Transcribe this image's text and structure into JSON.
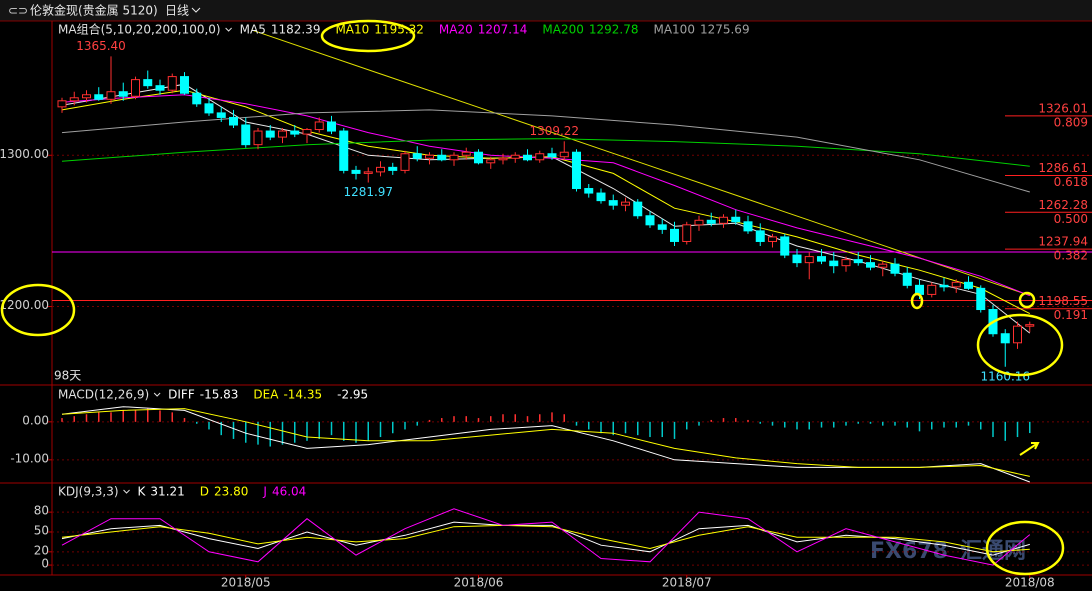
{
  "header": {
    "instrument": "伦敦金现(贵金属 5120)",
    "period": "日线",
    "watermark": [
      "FX678",
      "汇通网"
    ]
  },
  "chart_data": [
    {
      "type": "candlestick",
      "title": "MA组合(5,10,20,200,100,0)",
      "candles": [
        [
          1332,
          1338,
          1328,
          1336
        ],
        [
          1336,
          1342,
          1333,
          1338
        ],
        [
          1338,
          1343,
          1335,
          1340
        ],
        [
          1340,
          1345,
          1336,
          1337
        ],
        [
          1337,
          1365.4,
          1334,
          1342
        ],
        [
          1342,
          1348,
          1336,
          1339
        ],
        [
          1339,
          1352,
          1337,
          1350
        ],
        [
          1350,
          1356,
          1344,
          1346
        ],
        [
          1346,
          1350,
          1340,
          1343
        ],
        [
          1343,
          1354,
          1341,
          1352
        ],
        [
          1352,
          1355,
          1340,
          1341
        ],
        [
          1341,
          1344,
          1332,
          1334
        ],
        [
          1334,
          1338,
          1326,
          1328
        ],
        [
          1328,
          1332,
          1322,
          1325
        ],
        [
          1325,
          1330,
          1318,
          1320
        ],
        [
          1320,
          1325,
          1305,
          1307
        ],
        [
          1307,
          1318,
          1304,
          1316
        ],
        [
          1316,
          1320,
          1310,
          1312
        ],
        [
          1312,
          1318,
          1308,
          1316
        ],
        [
          1316,
          1320,
          1312,
          1314
        ],
        [
          1314,
          1318,
          1308,
          1317
        ],
        [
          1317,
          1325,
          1315,
          1322
        ],
        [
          1322,
          1326,
          1314,
          1316
        ],
        [
          1316,
          1318,
          1288,
          1290
        ],
        [
          1290,
          1293,
          1284,
          1288
        ],
        [
          1288,
          1292,
          1281.97,
          1289
        ],
        [
          1289,
          1296,
          1286,
          1292
        ],
        [
          1292,
          1295,
          1287,
          1290
        ],
        [
          1290,
          1303,
          1288,
          1301
        ],
        [
          1301,
          1306,
          1296,
          1298
        ],
        [
          1298,
          1302,
          1294,
          1300
        ],
        [
          1300,
          1304,
          1296,
          1297
        ],
        [
          1297,
          1302,
          1293,
          1300
        ],
        [
          1300,
          1305,
          1297,
          1302
        ],
        [
          1302,
          1304,
          1294,
          1295
        ],
        [
          1295,
          1299,
          1291,
          1297
        ],
        [
          1297,
          1301,
          1294,
          1298
        ],
        [
          1298,
          1302,
          1295,
          1300
        ],
        [
          1300,
          1304,
          1296,
          1297
        ],
        [
          1297,
          1303,
          1295,
          1301
        ],
        [
          1301,
          1305,
          1297,
          1299
        ],
        [
          1299,
          1309.22,
          1297,
          1302
        ],
        [
          1302,
          1304,
          1276,
          1278
        ],
        [
          1278,
          1281,
          1272,
          1275
        ],
        [
          1275,
          1278,
          1268,
          1270
        ],
        [
          1270,
          1274,
          1264,
          1267
        ],
        [
          1267,
          1272,
          1263,
          1269
        ],
        [
          1269,
          1271,
          1258,
          1260
        ],
        [
          1260,
          1263,
          1252,
          1254
        ],
        [
          1254,
          1258,
          1248,
          1251
        ],
        [
          1251,
          1256,
          1240,
          1243
        ],
        [
          1243,
          1256,
          1241,
          1254
        ],
        [
          1254,
          1260,
          1250,
          1257
        ],
        [
          1257,
          1262,
          1253,
          1255
        ],
        [
          1255,
          1261,
          1252,
          1259
        ],
        [
          1259,
          1264,
          1254,
          1256
        ],
        [
          1256,
          1260,
          1248,
          1250
        ],
        [
          1250,
          1255,
          1240,
          1243
        ],
        [
          1243,
          1248,
          1239,
          1246
        ],
        [
          1246,
          1248,
          1232,
          1234
        ],
        [
          1234,
          1238,
          1226,
          1229
        ],
        [
          1229,
          1236,
          1218,
          1233
        ],
        [
          1233,
          1238,
          1228,
          1230
        ],
        [
          1230,
          1236,
          1222,
          1227
        ],
        [
          1227,
          1233,
          1223,
          1231
        ],
        [
          1231,
          1236,
          1227,
          1229
        ],
        [
          1229,
          1234,
          1224,
          1226
        ],
        [
          1226,
          1230,
          1220,
          1228
        ],
        [
          1228,
          1232,
          1220,
          1222
        ],
        [
          1222,
          1226,
          1212,
          1214
        ],
        [
          1214,
          1218,
          1205,
          1208
        ],
        [
          1208,
          1216,
          1206,
          1214
        ],
        [
          1214,
          1219,
          1210,
          1213
        ],
        [
          1213,
          1218,
          1209,
          1216
        ],
        [
          1216,
          1220,
          1211,
          1212
        ],
        [
          1212,
          1214,
          1196,
          1198
        ],
        [
          1198,
          1201,
          1180,
          1182
        ],
        [
          1182,
          1185,
          1160.16,
          1176
        ],
        [
          1176,
          1190,
          1172,
          1187
        ],
        [
          1187,
          1190,
          1183,
          1188
        ]
      ],
      "up_color": "#ff3030",
      "down_color": "#00ffff",
      "ylim": [
        1148.1,
        1388.1
      ],
      "yticks": [
        {
          "value": 1300,
          "label": "1300.00"
        },
        {
          "value": 1200,
          "label": "1200.00"
        }
      ],
      "grid": true,
      "series": [
        {
          "name": "MA5",
          "label": "1182.39",
          "color": "#e8e8e8",
          "x": [
            0,
            5,
            10,
            15,
            20,
            25,
            30,
            35,
            40,
            45,
            50,
            55,
            60,
            65,
            70,
            75,
            79
          ],
          "values": [
            1333,
            1340,
            1347,
            1322,
            1314,
            1300,
            1297,
            1298,
            1299,
            1278,
            1253,
            1255,
            1240,
            1230,
            1218,
            1208,
            1182.39
          ]
        },
        {
          "name": "MA10",
          "label": "1195.32",
          "color": "#ffff00",
          "x": [
            0,
            5,
            10,
            15,
            20,
            25,
            30,
            35,
            40,
            45,
            50,
            55,
            60,
            65,
            70,
            75,
            79
          ],
          "values": [
            1330,
            1337,
            1343,
            1332,
            1316,
            1306,
            1300,
            1298,
            1299,
            1288,
            1265,
            1256,
            1246,
            1234,
            1224,
            1212,
            1195.32
          ]
        },
        {
          "name": "MA20",
          "label": "1207.14",
          "color": "#ff00ff",
          "x": [
            0,
            5,
            10,
            15,
            20,
            25,
            30,
            35,
            40,
            45,
            50,
            55,
            60,
            65,
            70,
            75,
            79
          ],
          "values": [
            1335,
            1338,
            1340,
            1334,
            1326,
            1315,
            1306,
            1300,
            1298,
            1295,
            1280,
            1264,
            1252,
            1242,
            1232,
            1220,
            1207.14
          ]
        },
        {
          "name": "MA200",
          "label": "1292.78",
          "color": "#00d000",
          "x": [
            0,
            10,
            20,
            30,
            40,
            50,
            60,
            70,
            79
          ],
          "values": [
            1296,
            1302,
            1307,
            1310,
            1311,
            1309,
            1306,
            1301,
            1292.78
          ]
        },
        {
          "name": "MA100",
          "label": "1275.69",
          "color": "#a0a0a0",
          "x": [
            0,
            10,
            20,
            30,
            40,
            50,
            60,
            70,
            79
          ],
          "values": [
            1315,
            1322,
            1328,
            1330,
            1326,
            1320,
            1312,
            1297,
            1275.69
          ]
        }
      ],
      "trendline": {
        "color": "#e0e000",
        "x": [
          15.5,
          79
        ],
        "values": [
          1382.8,
          1207.3
        ]
      },
      "hlines": [
        {
          "value": 1236,
          "color": "#ff00ff"
        },
        {
          "value": 1204,
          "color": "#ff2020"
        }
      ],
      "fib_levels": [
        {
          "value": 1326.01,
          "ratio": "0.809"
        },
        {
          "value": 1286.61,
          "ratio": "0.618"
        },
        {
          "value": 1262.28,
          "ratio": "0.500"
        },
        {
          "value": 1237.94,
          "ratio": "0.382"
        },
        {
          "value": 1198.55,
          "ratio": "0.191"
        }
      ],
      "extreme_labels": [
        {
          "label": "1365.40",
          "index": 4,
          "value": 1365.4,
          "side": "top",
          "color": "#ff4040"
        },
        {
          "label": "1281.97",
          "index": 25,
          "value": 1281.97,
          "side": "bottom",
          "color": "#40e0ff"
        },
        {
          "label": "1309.22",
          "index": 41,
          "value": 1309.22,
          "side": "top",
          "color": "#ff4040"
        },
        {
          "label": "1160.16",
          "index": 77,
          "value": 1160.16,
          "side": "bottom",
          "color": "#40e0ff"
        }
      ],
      "note": "98天"
    },
    {
      "type": "macd",
      "title": "MACD(12,26,9)",
      "histogram": [
        1,
        1.5,
        2,
        2.5,
        2.5,
        3,
        3,
        3.5,
        3,
        2.5,
        1,
        -0.5,
        -2,
        -3.5,
        -4.5,
        -5.5,
        -6,
        -6.5,
        -6,
        -5.5,
        -5,
        -4.5,
        -3.5,
        -5,
        -5.5,
        -5,
        -4,
        -3,
        -2,
        -1,
        0.5,
        1,
        1.5,
        1.5,
        1,
        1.5,
        2,
        2,
        1.5,
        2,
        2.5,
        2,
        -1,
        -2,
        -3,
        -3.5,
        -3,
        -3.5,
        -4,
        -4,
        -4.5,
        -2,
        -1,
        0.5,
        1,
        1,
        0.5,
        -0.5,
        -1,
        -1.5,
        -2,
        -2,
        -1.5,
        -1.5,
        -1,
        -0.5,
        -0.5,
        -1,
        -1,
        -1.5,
        -2.5,
        -2,
        -1.5,
        -1.5,
        -1,
        -2,
        -4,
        -5,
        -4,
        -2.95
      ],
      "histogram_label": "-2.95",
      "up_color": "#ff3030",
      "down_color": "#00c8c8",
      "series": [
        {
          "name": "DIFF",
          "label": "-15.83",
          "color": "#ffffff",
          "x": [
            0,
            5,
            10,
            15,
            20,
            25,
            30,
            35,
            40,
            45,
            50,
            55,
            60,
            65,
            70,
            75,
            79
          ],
          "values": [
            2,
            4,
            3,
            -3,
            -7,
            -6,
            -4,
            -2,
            -1,
            -5,
            -10,
            -11,
            -12,
            -12,
            -12,
            -11,
            -15.83
          ]
        },
        {
          "name": "DEA",
          "label": "-14.35",
          "color": "#ffff00",
          "x": [
            0,
            5,
            10,
            15,
            20,
            25,
            30,
            35,
            40,
            45,
            50,
            55,
            60,
            65,
            70,
            75,
            79
          ],
          "values": [
            2,
            3,
            3.5,
            0,
            -4,
            -5,
            -5,
            -3.5,
            -2,
            -3,
            -7,
            -9.5,
            -11,
            -12,
            -12,
            -11.5,
            -14.35
          ]
        }
      ],
      "ylim": [
        -16.1,
        9.7
      ],
      "yticks": [
        {
          "value": 0,
          "label": "0.00"
        },
        {
          "value": -10,
          "label": "-10.00"
        }
      ],
      "grid": true
    },
    {
      "type": "kdj",
      "title": "KDJ(9,3,3)",
      "series": [
        {
          "name": "K",
          "label": "31.21",
          "color": "#ffffff",
          "x": [
            0,
            4,
            8,
            12,
            16,
            20,
            24,
            28,
            32,
            36,
            40,
            44,
            48,
            52,
            56,
            60,
            64,
            68,
            72,
            76,
            79
          ],
          "values": [
            40,
            55,
            60,
            40,
            25,
            50,
            30,
            45,
            65,
            60,
            60,
            30,
            20,
            55,
            60,
            35,
            45,
            40,
            30,
            15,
            31.21
          ]
        },
        {
          "name": "D",
          "label": "23.80",
          "color": "#ffff00",
          "x": [
            0,
            4,
            8,
            12,
            16,
            20,
            24,
            28,
            32,
            36,
            40,
            44,
            48,
            52,
            56,
            60,
            64,
            68,
            72,
            76,
            79
          ],
          "values": [
            42,
            50,
            58,
            48,
            32,
            42,
            35,
            40,
            58,
            60,
            58,
            40,
            25,
            45,
            58,
            42,
            42,
            42,
            35,
            20,
            23.8
          ]
        },
        {
          "name": "J",
          "label": "46.04",
          "color": "#ff00ff",
          "x": [
            0,
            4,
            8,
            12,
            16,
            20,
            24,
            28,
            32,
            36,
            40,
            44,
            48,
            52,
            56,
            60,
            64,
            68,
            72,
            76,
            79
          ],
          "values": [
            30,
            70,
            70,
            20,
            5,
            70,
            15,
            55,
            85,
            60,
            65,
            10,
            5,
            80,
            70,
            20,
            55,
            35,
            15,
            0,
            46.04
          ]
        }
      ],
      "ylim": [
        -15,
        124
      ],
      "yticks": [
        80,
        50,
        20,
        0
      ],
      "grid": true,
      "xticks": [
        {
          "value": 15,
          "label": "2018/05"
        },
        {
          "value": 34,
          "label": "2018/06"
        },
        {
          "value": 51,
          "label": "2018/07"
        },
        {
          "value": 79,
          "label": "2018/08"
        }
      ]
    }
  ]
}
